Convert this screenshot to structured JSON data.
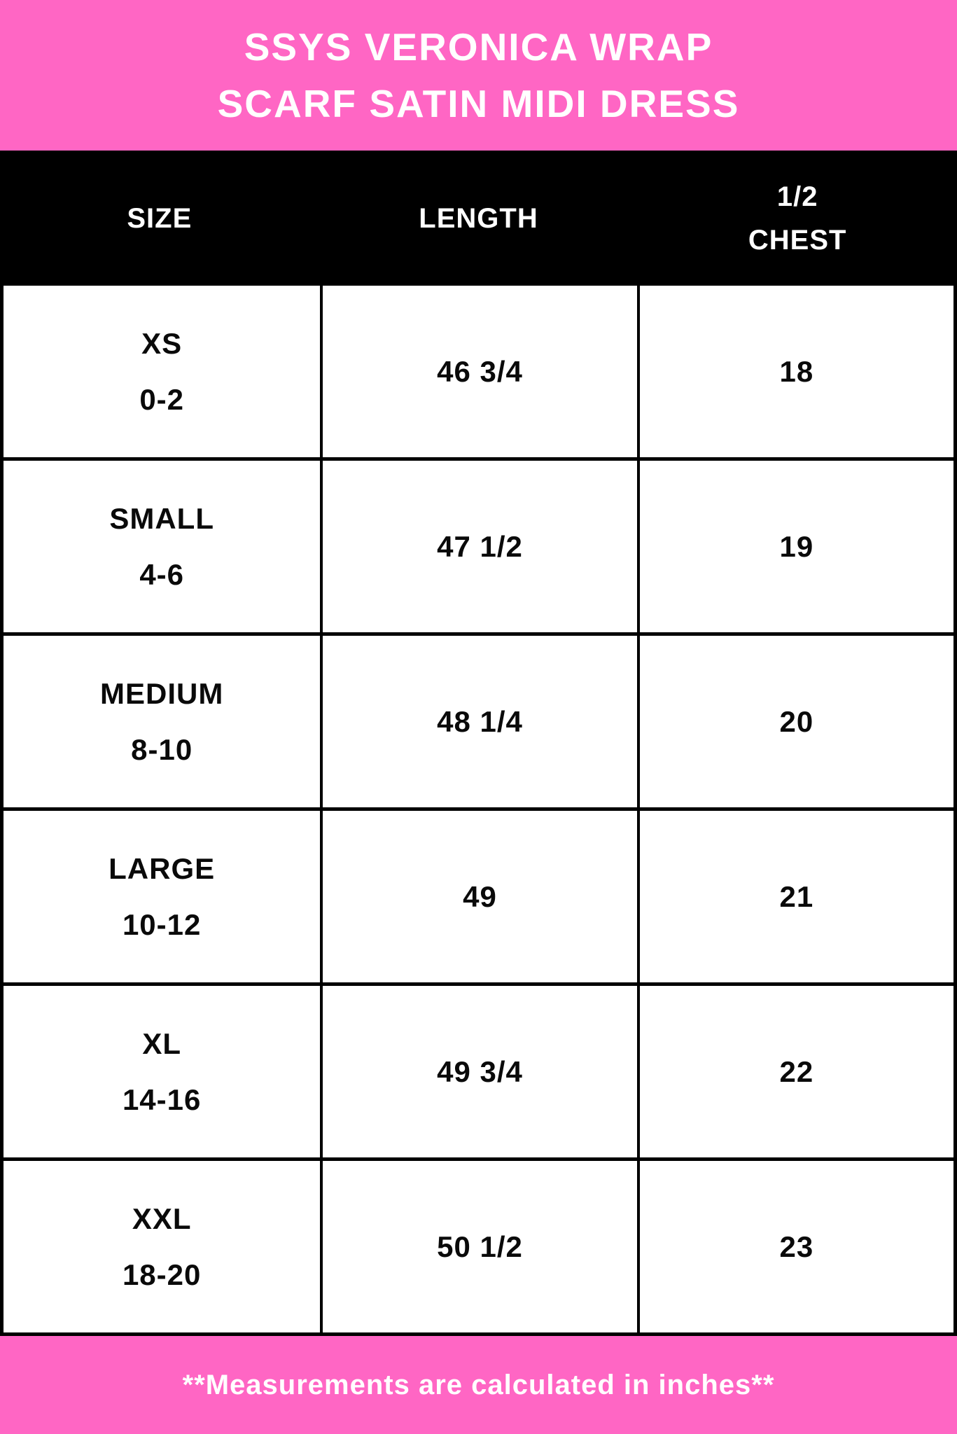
{
  "title": {
    "line1": "SSYS VERONICA WRAP",
    "line2": "SCARF SATIN MIDI DRESS"
  },
  "header": {
    "size": "SIZE",
    "length": "LENGTH",
    "chest_line1": "1/2",
    "chest_line2": "CHEST"
  },
  "rows": [
    {
      "size_name": "XS",
      "size_range": "0-2",
      "length": "46 3/4",
      "half_chest": "18"
    },
    {
      "size_name": "SMALL",
      "size_range": "4-6",
      "length": "47 1/2",
      "half_chest": "19"
    },
    {
      "size_name": "MEDIUM",
      "size_range": "8-10",
      "length": "48 1/4",
      "half_chest": "20"
    },
    {
      "size_name": "LARGE",
      "size_range": "10-12",
      "length": "49",
      "half_chest": "21"
    },
    {
      "size_name": "XL",
      "size_range": "14-16",
      "length": "49 3/4",
      "half_chest": "22"
    },
    {
      "size_name": "XXL",
      "size_range": "18-20",
      "length": "50 1/2",
      "half_chest": "23"
    }
  ],
  "footer": {
    "note": "**Measurements are calculated in inches**"
  },
  "colors": {
    "pink": "#FF66C4",
    "black": "#000000",
    "white": "#FFFFFF"
  },
  "chart_data": {
    "type": "table",
    "title": "SSYS VERONICA WRAP SCARF SATIN MIDI DRESS",
    "columns": [
      "SIZE",
      "LENGTH",
      "1/2 CHEST"
    ],
    "rows": [
      [
        "XS 0-2",
        "46 3/4",
        "18"
      ],
      [
        "SMALL 4-6",
        "47 1/2",
        "19"
      ],
      [
        "MEDIUM 8-10",
        "48 1/4",
        "20"
      ],
      [
        "LARGE 10-12",
        "49",
        "21"
      ],
      [
        "XL 14-16",
        "49 3/4",
        "22"
      ],
      [
        "XXL 18-20",
        "50 1/2",
        "23"
      ]
    ],
    "units_note": "Measurements are calculated in inches"
  }
}
